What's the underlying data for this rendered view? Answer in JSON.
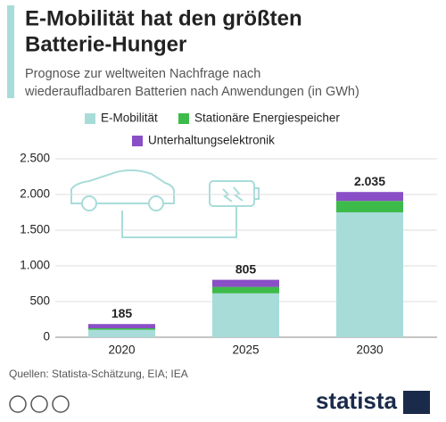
{
  "chart_data": {
    "type": "stacked_bar",
    "title": [
      "E-Mobilität hat den größten",
      "Batterie-Hunger"
    ],
    "subtitle": [
      "Prognose zur weltweiten Nachfrage nach",
      "wiederaufladbaren Batterien nach Anwendungen (in GWh)"
    ],
    "categories": [
      "2020",
      "2025",
      "2030"
    ],
    "series": [
      {
        "name": "E-Mobilität",
        "color": "#a8dcd9",
        "values": [
          105,
          615,
          1750
        ]
      },
      {
        "name": "Stationäre Energiespeicher",
        "color": "#3dbb4a",
        "values": [
          20,
          90,
          160
        ]
      },
      {
        "name": "Unterhaltungselektronik",
        "color": "#8a4fc6",
        "values": [
          60,
          100,
          125
        ]
      }
    ],
    "totals": [
      185,
      805,
      2035
    ],
    "value_labels": [
      "185",
      "805",
      "2.035"
    ],
    "ylim": [
      0,
      2500
    ],
    "yticks": [
      0,
      500,
      {
        "value": 1000,
        "label": "1.000"
      },
      {
        "value": 1500,
        "label": "1.500"
      },
      {
        "value": 2000,
        "label": "2.000"
      },
      {
        "value": 2500,
        "label": "2.500"
      }
    ],
    "grid": true,
    "source": "Quellen: Statista-Schätzung, EIA; IEA",
    "logo": "statista"
  }
}
